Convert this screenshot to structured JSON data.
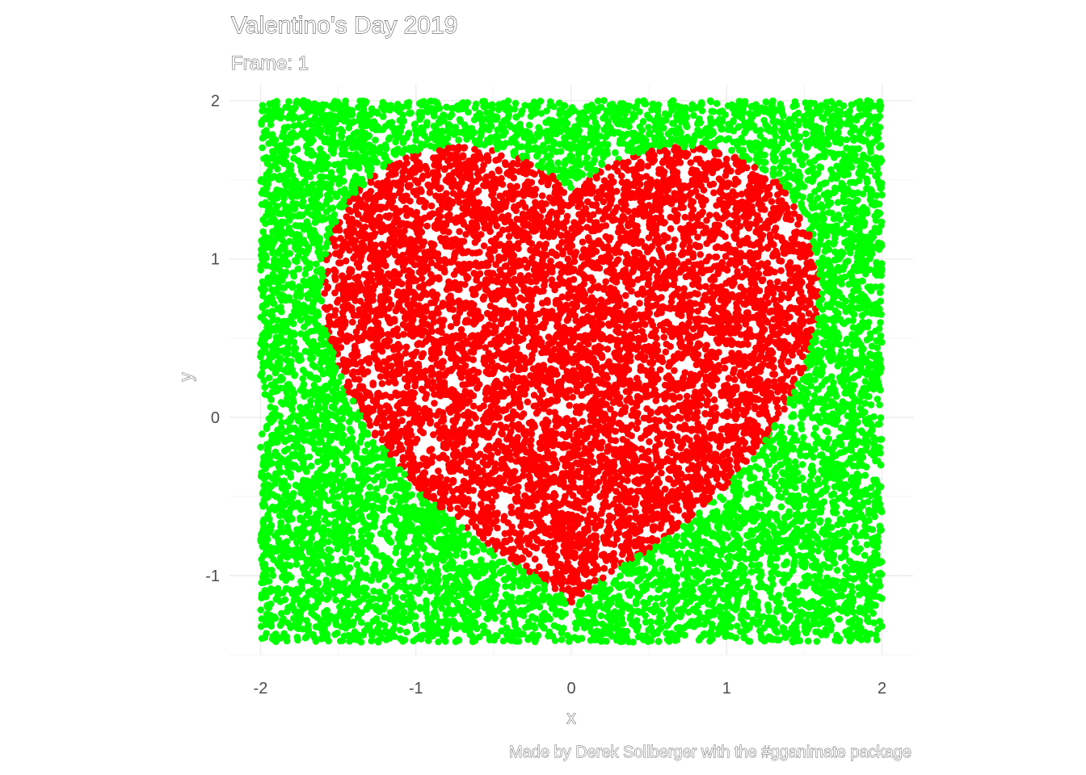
{
  "chart_data": {
    "type": "scatter",
    "title": "Valentino's Day 2019",
    "subtitle": "Frame: 1",
    "xlabel": "x",
    "ylabel": "y",
    "caption": "Made by Derek Sollberger with the #gganimate package",
    "xlim": [
      -2.2,
      2.2
    ],
    "ylim": [
      -1.5,
      2.1
    ],
    "x_ticks": [
      -2,
      -1,
      0,
      1,
      2
    ],
    "y_ticks": [
      -1,
      0,
      1,
      2
    ],
    "x_tick_labels": [
      "-2",
      "-1",
      "0",
      "1",
      "2"
    ],
    "y_tick_labels": [
      "-1",
      "0",
      "1",
      "2"
    ],
    "grid": true,
    "legend": "none",
    "sampling_region": {
      "x": [
        -2,
        2
      ],
      "y": [
        -1.42,
        2
      ]
    },
    "n_points": 14000,
    "series": [
      {
        "color": "#ff0000",
        "region": "inside heart curve"
      },
      {
        "color": "#00ff00",
        "region": "outside heart curve"
      }
    ]
  }
}
